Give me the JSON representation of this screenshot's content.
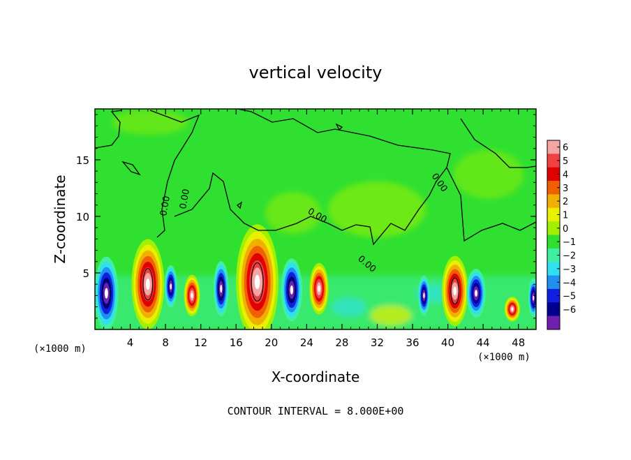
{
  "chart_data": {
    "type": "heatmap",
    "title": "vertical velocity",
    "xlabel": "X-coordinate",
    "ylabel": "Z-coordinate",
    "x_unit_left": "(×1000 m)",
    "x_unit_right": "(×1000 m)",
    "footer": "CONTOUR INTERVAL = 8.000E+00",
    "xlim": [
      0,
      50
    ],
    "ylim": [
      0,
      19.5
    ],
    "x_ticks": [
      4,
      8,
      12,
      16,
      20,
      24,
      28,
      32,
      36,
      40,
      44,
      48
    ],
    "y_ticks": [
      5,
      10,
      15
    ],
    "contour_labels": [
      "0.00",
      "0.00",
      "0.00",
      "0.00",
      "0.00"
    ],
    "colorbar": {
      "ticks": [
        6,
        5,
        4,
        3,
        2,
        1,
        0,
        -1,
        -2,
        -3,
        -4,
        -5,
        -6
      ],
      "colors": [
        "#f4a5a5",
        "#f04040",
        "#e00000",
        "#f06000",
        "#f0b000",
        "#e8f000",
        "#a0f000",
        "#30e030",
        "#40f0a0",
        "#30e0f0",
        "#2090f0",
        "#1020e0",
        "#000090",
        "#7020b0"
      ]
    },
    "cells": [
      {
        "x": 1.3,
        "z": 3.2,
        "sx": 1.0,
        "sz": 2.4,
        "w": -14
      },
      {
        "x": 6.0,
        "z": 4.0,
        "sx": 1.3,
        "sz": 2.8,
        "w": 17
      },
      {
        "x": 8.6,
        "z": 3.8,
        "sx": 0.6,
        "sz": 1.6,
        "w": -7
      },
      {
        "x": 11.0,
        "z": 3.0,
        "sx": 0.8,
        "sz": 1.6,
        "w": 6
      },
      {
        "x": 14.3,
        "z": 3.6,
        "sx": 0.7,
        "sz": 2.0,
        "w": -9
      },
      {
        "x": 18.4,
        "z": 4.2,
        "sx": 1.6,
        "sz": 3.4,
        "w": 20
      },
      {
        "x": 22.3,
        "z": 3.5,
        "sx": 0.9,
        "sz": 2.1,
        "w": -13
      },
      {
        "x": 25.4,
        "z": 3.6,
        "sx": 0.9,
        "sz": 1.9,
        "w": 8
      },
      {
        "x": 37.3,
        "z": 3.0,
        "sx": 0.55,
        "sz": 1.5,
        "w": -7
      },
      {
        "x": 40.8,
        "z": 3.4,
        "sx": 1.1,
        "sz": 2.3,
        "w": 14
      },
      {
        "x": 43.2,
        "z": 3.2,
        "sx": 0.9,
        "sz": 1.8,
        "w": -8
      },
      {
        "x": 47.3,
        "z": 1.8,
        "sx": 0.8,
        "sz": 1.0,
        "w": 4
      },
      {
        "x": 49.7,
        "z": 2.8,
        "sx": 0.5,
        "sz": 1.5,
        "w": -6
      }
    ]
  }
}
